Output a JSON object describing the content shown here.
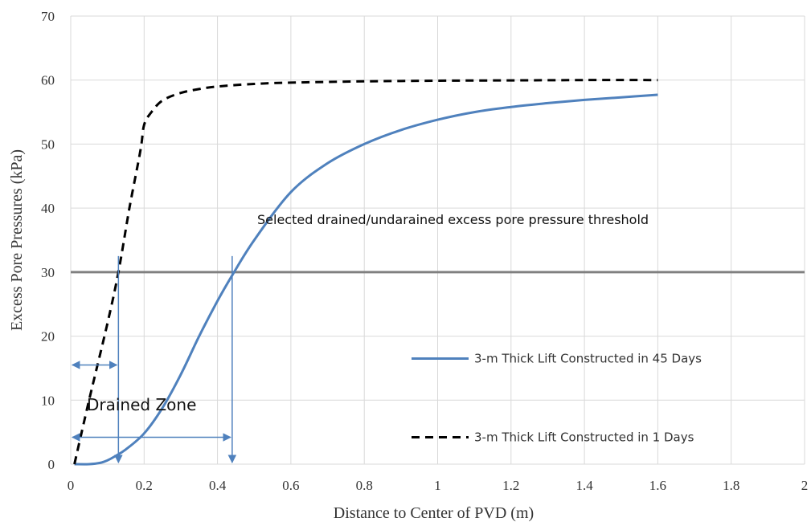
{
  "chart_data": {
    "type": "line",
    "title": "",
    "xlabel": "Distance to Center of PVD (m)",
    "ylabel": "Excess Pore Pressures (kPa)",
    "xlim": [
      0,
      2
    ],
    "ylim": [
      0,
      70
    ],
    "x_ticks": [
      0,
      0.2,
      0.4,
      0.6,
      0.8,
      1,
      1.2,
      1.4,
      1.6,
      1.8,
      2
    ],
    "y_ticks": [
      0,
      10,
      20,
      30,
      40,
      50,
      60,
      70
    ],
    "x_tick_labels": [
      "0",
      "0.2",
      "0.4",
      "0.6",
      "0.8",
      "1",
      "1.2",
      "1.4",
      "1.6",
      "1.8",
      "2"
    ],
    "y_tick_labels": [
      "0",
      "10",
      "20",
      "30",
      "40",
      "50",
      "60",
      "70"
    ],
    "grid": true,
    "legend_position": "right",
    "series": [
      {
        "name": "3-m Thick Lift Constructed in 45 Days",
        "color": "#4f81bd",
        "style": "solid",
        "x": [
          0.01,
          0.05,
          0.08,
          0.1,
          0.12,
          0.15,
          0.2,
          0.25,
          0.3,
          0.35,
          0.4,
          0.44,
          0.5,
          0.6,
          0.7,
          0.8,
          0.9,
          1.0,
          1.1,
          1.2,
          1.3,
          1.4,
          1.5,
          1.6
        ],
        "y": [
          0,
          0,
          0.2,
          0.6,
          1.2,
          2.3,
          4.8,
          8.8,
          14,
          20,
          25.5,
          29.5,
          35,
          42.5,
          47,
          50,
          52.2,
          53.8,
          55,
          55.8,
          56.4,
          56.9,
          57.3,
          57.7
        ]
      },
      {
        "name": "3-m Thick Lift Constructed in 1 Days",
        "color": "#000000",
        "style": "dashed",
        "x": [
          0.01,
          0.05,
          0.1,
          0.13,
          0.16,
          0.19,
          0.2,
          0.22,
          0.25,
          0.3,
          0.35,
          0.4,
          0.5,
          0.6,
          0.8,
          1.0,
          1.2,
          1.4,
          1.6
        ],
        "y": [
          0,
          10,
          22,
          30,
          40,
          49,
          53,
          55,
          56.8,
          58,
          58.6,
          59,
          59.4,
          59.6,
          59.8,
          59.9,
          59.95,
          60,
          60
        ]
      }
    ],
    "threshold": {
      "y": 30,
      "color": "#808080",
      "label": "Selected drained/undarained excess pore pressure threshold"
    },
    "annotations": {
      "drained_zone_label": "Drained Zone",
      "color": "#4f81bd",
      "vertical_markers": [
        {
          "x": 0.13,
          "y_top": 32.5
        },
        {
          "x": 0.44,
          "y_top": 32.5
        }
      ],
      "horizontal_spans": [
        {
          "x0": 0,
          "x1": 0.13,
          "y": 15.5
        },
        {
          "x0": 0,
          "x1": 0.44,
          "y": 4.2
        }
      ]
    }
  }
}
